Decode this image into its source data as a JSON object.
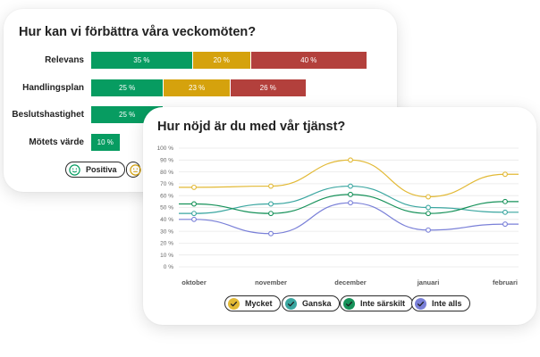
{
  "colors": {
    "positive": "#079c61",
    "neutral": "#d5a20d",
    "negative": "#b3403c",
    "mycket": "#e2b935",
    "ganska": "#3aa6a0",
    "inte_sarskilt": "#17925a",
    "inte_alls": "#7a80d8"
  },
  "chart_data": [
    {
      "type": "bar",
      "stacked": true,
      "orientation": "horizontal",
      "title": "Hur kan vi förbättra våra veckomöten?",
      "categories": [
        "Relevans",
        "Handlingsplan",
        "Beslutshastighet",
        "Mötets värde"
      ],
      "series": [
        {
          "name": "Positiva",
          "color": "#079c61",
          "values": [
            35,
            25,
            25,
            10
          ],
          "labels": [
            "35 %",
            "25 %",
            "25 %",
            "10 %"
          ]
        },
        {
          "name": "",
          "color": "#d5a20d",
          "values": [
            20,
            23,
            null,
            null
          ],
          "labels": [
            "20 %",
            "23 %",
            "",
            ""
          ]
        },
        {
          "name": "",
          "color": "#b3403c",
          "values": [
            40,
            26,
            null,
            null
          ],
          "labels": [
            "40 %",
            "26 %",
            "",
            ""
          ]
        }
      ],
      "legend": [
        {
          "label": "Positiva",
          "icon": "smiley-happy-icon"
        }
      ]
    },
    {
      "type": "line",
      "title": "Hur nöjd är du med vår tjänst?",
      "x": [
        "oktober",
        "november",
        "december",
        "januari",
        "februari"
      ],
      "ylim": [
        0,
        100
      ],
      "yticks": [
        "0 %",
        "10 %",
        "20 %",
        "30 %",
        "40 %",
        "50 %",
        "60 %",
        "70 %",
        "80 %",
        "90 %",
        "100 %"
      ],
      "grid": true,
      "legend_position": "bottom",
      "series": [
        {
          "name": "Mycket",
          "color": "#e2b935",
          "values": [
            67,
            68,
            90,
            59,
            78
          ]
        },
        {
          "name": "Ganska",
          "color": "#3aa6a0",
          "values": [
            45,
            53,
            68,
            50,
            46
          ]
        },
        {
          "name": "Inte särskilt",
          "color": "#17925a",
          "values": [
            53,
            45,
            61,
            45,
            55
          ]
        },
        {
          "name": "Inte alls",
          "color": "#7a80d8",
          "values": [
            40,
            28,
            54,
            31,
            36
          ]
        }
      ]
    }
  ]
}
